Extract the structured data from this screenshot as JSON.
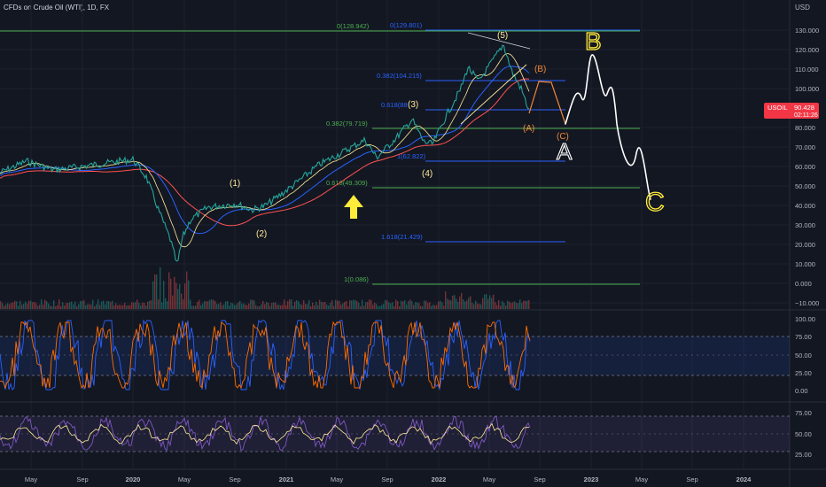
{
  "header": {
    "title": "CFDs on Crude Oil (WTI), 1D, FX",
    "currency": "USD"
  },
  "price_axis": {
    "ticks": [
      "130.000",
      "120.000",
      "110.000",
      "100.000",
      "80.000",
      "70.000",
      "60.000",
      "50.000",
      "40.000",
      "30.000",
      "20.000",
      "10.000",
      "0.000",
      "−10.000"
    ],
    "badge_symbol": "USOIL",
    "badge_price": "90.428",
    "badge_time": "02:11:26"
  },
  "stoch_axis": {
    "ticks": [
      "100.00",
      "75.00",
      "50.00",
      "25.00",
      "0.00"
    ]
  },
  "rsi_axis": {
    "ticks": [
      "75.00",
      "50.00",
      "25.00"
    ]
  },
  "time_axis": {
    "ticks": [
      "May",
      "Sep",
      "2020",
      "May",
      "Sep",
      "2021",
      "May",
      "Sep",
      "2022",
      "May",
      "Sep",
      "2023",
      "May",
      "Sep",
      "2024"
    ]
  },
  "fib_labels": {
    "outer_0": "0(128.942)",
    "inner_0": "0(129.801)",
    "outer_0382": "0.382(79.719)",
    "inner_0382": "0.382(104.215)",
    "inner_0618": "0.618(88",
    "inner_1": "1(62.822)",
    "outer_0618": "0.618(49.309)",
    "inner_1618": "1.618(21.429)",
    "outer_1": "1(0.086)"
  },
  "wave_labels": {
    "w1": "(1)",
    "w2": "(2)",
    "w3": "(3)",
    "w4": "(4)",
    "w5": "(5)",
    "wA": "(A)",
    "wB": "(B)",
    "wC": "(C)"
  },
  "drawing_labels": {
    "big_a": "A",
    "big_b": "B",
    "big_c": "C"
  },
  "colors": {
    "background": "#131722",
    "grid": "#1e222d",
    "text": "#b2b5be",
    "price": "#26a69a",
    "price_down": "#ef5350",
    "ma_blue": "#2962ff",
    "ma_red": "#ff5252",
    "ma_yellow": "#ffeb99",
    "fib_green": "#4caf50",
    "fib_blue": "#2962ff",
    "wave_orange": "#f0883a",
    "handdrawn": "#ffffff",
    "arrow": "#ffeb3b",
    "badge": "#f23645",
    "stoch_k": "#2962ff",
    "stoch_d": "#ff6d00",
    "rsi": "#7e57c2"
  }
}
